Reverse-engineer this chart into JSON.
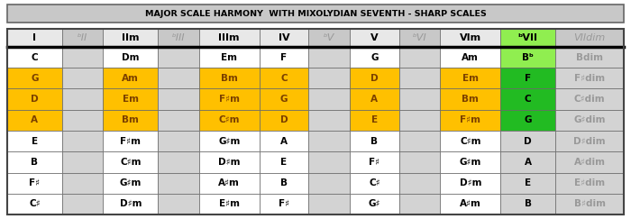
{
  "title": "MAJOR SCALE HARMONY  WITH MIXOLYDIAN SEVENTH - SHARP SCALES",
  "headers": [
    "I",
    "ᵇII",
    "IIm",
    "ᵇIII",
    "IIIm",
    "IV",
    "ᵇV",
    "V",
    "ᵇVI",
    "VIm",
    "ᵇVII",
    "VIIdim"
  ],
  "rows": [
    [
      "C",
      "",
      "Dm",
      "",
      "Em",
      "F",
      "",
      "G",
      "",
      "Am",
      "Bᵇ",
      "Bdim"
    ],
    [
      "G",
      "",
      "Am",
      "",
      "Bm",
      "C",
      "",
      "D",
      "",
      "Em",
      "F",
      "F♯dim"
    ],
    [
      "D",
      "",
      "Em",
      "",
      "F♯m",
      "G",
      "",
      "A",
      "",
      "Bm",
      "C",
      "C♯dim"
    ],
    [
      "A",
      "",
      "Bm",
      "",
      "C♯m",
      "D",
      "",
      "E",
      "",
      "F♯m",
      "G",
      "G♯dim"
    ],
    [
      "E",
      "",
      "F♯m",
      "",
      "G♯m",
      "A",
      "",
      "B",
      "",
      "C♯m",
      "D",
      "D♯dim"
    ],
    [
      "B",
      "",
      "C♯m",
      "",
      "D♯m",
      "E",
      "",
      "F♯",
      "",
      "G♯m",
      "A",
      "A♯dim"
    ],
    [
      "F♯",
      "",
      "G♯m",
      "",
      "A♯m",
      "B",
      "",
      "C♯",
      "",
      "D♯m",
      "E",
      "E♯dim"
    ],
    [
      "C♯",
      "",
      "D♯m",
      "",
      "E♯m",
      "F♯",
      "",
      "G♯",
      "",
      "A♯m",
      "B",
      "B♯dim"
    ]
  ],
  "row_highlight": [
    false,
    true,
    true,
    true,
    false,
    false,
    false,
    false
  ],
  "bVII_colors": [
    "#90EE50",
    "#22bb22",
    "#22bb22",
    "#22bb22",
    "#d3d3d3",
    "#d3d3d3",
    "#d3d3d3",
    "#d3d3d3"
  ],
  "orange_color": "#FFC000",
  "green_header": "#90EE50",
  "light_gray": "#d3d3d3",
  "mid_gray": "#c8c8c8",
  "white": "#ffffff",
  "title_bg": "#c8c8c8",
  "header_bg_normal": "#e8e8e8",
  "header_bg_gray": "#c8c8c8",
  "border_color": "#666666",
  "thick_line_color": "#000000",
  "text_black": "#000000",
  "text_gray": "#999999",
  "text_orange": "#7a4000",
  "title_fontsize": 6.8,
  "header_fontsize": 8.0,
  "cell_fontsize": 7.5,
  "figwidth": 7.0,
  "figheight": 2.43,
  "dpi": 100
}
